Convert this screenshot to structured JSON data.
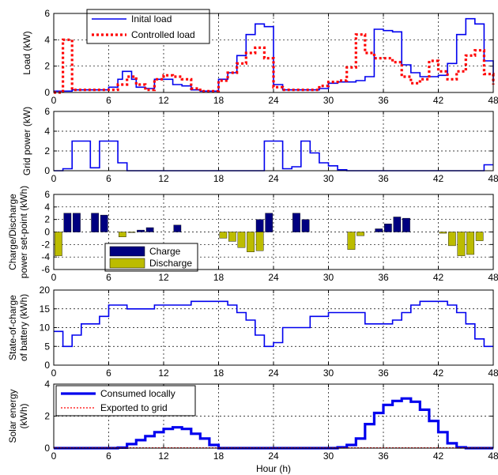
{
  "colors": {
    "blue": "#0000ee",
    "red": "#ff0000",
    "navy": "#000080",
    "olive": "#bcbc00"
  },
  "chart_data": [
    {
      "type": "line",
      "ylabel": "Load (kW)",
      "xlim": [
        0,
        48
      ],
      "ylim": [
        0,
        6
      ],
      "xticks": [
        "0",
        "6",
        "12",
        "18",
        "24",
        "30",
        "36",
        "42",
        "48"
      ],
      "yticks": [
        "0",
        "2",
        "4",
        "6"
      ],
      "grid": true,
      "legend_position": "top-left",
      "series": [
        {
          "name": "Inital load",
          "style": "solid",
          "x": [
            0,
            1,
            2,
            3,
            4,
            5,
            6,
            7,
            7.5,
            8.5,
            9,
            10,
            11,
            12,
            13,
            14,
            15,
            16,
            17,
            18,
            19,
            20,
            21,
            22,
            23,
            24,
            25,
            26,
            27,
            28,
            29,
            30,
            31,
            32,
            33,
            34,
            35,
            36,
            37,
            38,
            39,
            40,
            41,
            42,
            43,
            44,
            45,
            46,
            47,
            48
          ],
          "y": [
            0.1,
            0.1,
            0.2,
            0.2,
            0.2,
            0.2,
            0.4,
            1.0,
            1.6,
            1.0,
            0.4,
            0.3,
            1.0,
            1.0,
            0.6,
            0.5,
            0.2,
            0.1,
            0.1,
            1.0,
            1.5,
            2.8,
            4.4,
            5.2,
            5.0,
            0.6,
            0.2,
            0.2,
            0.2,
            0.2,
            0.3,
            0.7,
            0.8,
            0.8,
            0.9,
            1.2,
            4.8,
            4.7,
            4.6,
            2.1,
            1.5,
            1.2,
            1.2,
            1.3,
            2.2,
            4.4,
            5.6,
            5.2,
            2.4,
            0.8
          ]
        },
        {
          "name": "Controlled load",
          "style": "dotted",
          "x": [
            0,
            1,
            2,
            3,
            4,
            5,
            6,
            7,
            8,
            9,
            10,
            11,
            12,
            13,
            14,
            15,
            16,
            17,
            18,
            19,
            20,
            21,
            22,
            23,
            24,
            25,
            26,
            27,
            28,
            29,
            30,
            31,
            32,
            33,
            34,
            35,
            36,
            37,
            38,
            39,
            40,
            41,
            42,
            43,
            44,
            45,
            46,
            47,
            48
          ],
          "y": [
            0,
            4.0,
            0.2,
            0.2,
            0.2,
            0.2,
            0.2,
            0.6,
            1.2,
            0.6,
            0.2,
            1.0,
            1.3,
            1.2,
            1.0,
            0.3,
            0.1,
            0.1,
            0.9,
            1.5,
            2.2,
            3.0,
            3.4,
            2.6,
            0.4,
            0.2,
            0.2,
            0.2,
            0.2,
            0.5,
            0.8,
            0.9,
            1.9,
            4.4,
            3.0,
            2.6,
            2.6,
            2.3,
            1.2,
            0.7,
            1.0,
            2.4,
            1.6,
            1.0,
            1.6,
            2.8,
            3.2,
            1.4,
            0.6
          ]
        }
      ]
    },
    {
      "type": "line",
      "ylabel": "Grid power (kW)",
      "xlim": [
        0,
        48
      ],
      "ylim": [
        0,
        6
      ],
      "xticks": [
        "0",
        "6",
        "12",
        "18",
        "24",
        "30",
        "36",
        "42",
        "48"
      ],
      "yticks": [
        "0",
        "2",
        "4",
        "6"
      ],
      "grid": true,
      "x": [
        0,
        1,
        2,
        3,
        4,
        5,
        6,
        7,
        8,
        9,
        10,
        11,
        12,
        13,
        14,
        15,
        16,
        17,
        18,
        19,
        20,
        21,
        22,
        23,
        24,
        25,
        26,
        27,
        28,
        29,
        30,
        31,
        32,
        33,
        34,
        35,
        36,
        37,
        38,
        39,
        40,
        41,
        42,
        43,
        44,
        45,
        46,
        47,
        48
      ],
      "y": [
        0,
        0.2,
        3.0,
        3.0,
        0.3,
        3.0,
        3.0,
        0.8,
        0,
        0,
        0,
        0,
        0,
        0,
        0,
        0,
        0,
        0,
        0,
        0,
        0,
        0,
        0,
        3.0,
        3.0,
        0.2,
        0.4,
        3.0,
        1.8,
        0.8,
        0.5,
        0.1,
        0,
        0,
        0,
        0,
        0,
        0,
        0,
        0,
        0,
        0,
        0,
        0,
        0,
        0,
        0,
        0.6,
        0.6
      ]
    },
    {
      "type": "bar",
      "ylabel": "Charge/Discharge power set-point (kWh)",
      "ylabel_lines": [
        "Charge/Discharge",
        "power set-point (kWh)"
      ],
      "xlim": [
        0,
        48
      ],
      "ylim": [
        -6,
        6
      ],
      "xticks": [
        "0",
        "6",
        "12",
        "18",
        "24",
        "30",
        "36",
        "42",
        "48"
      ],
      "yticks": [
        "-6",
        "-4",
        "-2",
        "0",
        "2",
        "4",
        "6"
      ],
      "grid": true,
      "legend_position": "bottom-center",
      "series": [
        {
          "name": "Charge",
          "x": [
            1.5,
            2.5,
            4.5,
            5.5,
            9.5,
            10.5,
            13.5,
            22.5,
            23.5,
            26.5,
            27.5,
            35.5,
            36.5,
            37.5,
            38.5
          ],
          "values": [
            3,
            3,
            3,
            2.7,
            0.3,
            0.7,
            1.1,
            2.0,
            3.0,
            3.0,
            2.0,
            0.5,
            1.3,
            2.4,
            2.2
          ]
        },
        {
          "name": "Discharge",
          "x": [
            0.5,
            7.5,
            8.5,
            18.5,
            19.5,
            20.5,
            21.5,
            22.5,
            32.5,
            33.5,
            42.5,
            43.5,
            44.5,
            45.5,
            46.5
          ],
          "values": [
            -3.8,
            -0.8,
            -0.1,
            -1.0,
            -1.5,
            -2.5,
            -3.2,
            -3.0,
            -2.8,
            -0.6,
            -0.2,
            -2.2,
            -3.8,
            -3.6,
            -1.4
          ]
        }
      ]
    },
    {
      "type": "line",
      "ylabel": "State-of-charge of battery (kWh)",
      "ylabel_lines": [
        "State-of-charge",
        "of battery (kWh)"
      ],
      "xlim": [
        0,
        48
      ],
      "ylim": [
        0,
        20
      ],
      "xticks": [
        "0",
        "6",
        "12",
        "18",
        "24",
        "30",
        "36",
        "42",
        "48"
      ],
      "yticks": [
        "0",
        "5",
        "10",
        "15",
        "20"
      ],
      "grid": true,
      "x": [
        0,
        1,
        2,
        3,
        4,
        5,
        6,
        7,
        8,
        9,
        10,
        11,
        12,
        13,
        14,
        15,
        16,
        17,
        18,
        19,
        20,
        21,
        22,
        23,
        24,
        25,
        26,
        27,
        28,
        29,
        30,
        31,
        32,
        33,
        34,
        35,
        36,
        37,
        38,
        39,
        40,
        41,
        42,
        43,
        44,
        45,
        46,
        47,
        48
      ],
      "y": [
        9,
        5,
        8,
        11,
        11,
        13,
        16,
        16,
        15,
        15,
        15,
        16,
        16,
        16,
        16,
        17,
        17,
        17,
        17,
        16,
        14,
        12,
        8,
        5,
        6,
        10,
        10,
        10,
        13,
        13,
        14,
        14,
        14,
        14,
        11,
        11,
        11,
        12,
        14,
        16,
        17,
        17,
        17,
        16,
        14,
        11,
        7,
        5,
        5
      ]
    },
    {
      "type": "line",
      "ylabel": "Solar energy (kWh)",
      "ylabel_lines": [
        "Solar energy",
        "(kWh)"
      ],
      "xlabel": "Hour (h)",
      "xlim": [
        0,
        48
      ],
      "ylim": [
        0,
        4
      ],
      "xticks": [
        "0",
        "6",
        "12",
        "18",
        "24",
        "30",
        "36",
        "42",
        "48"
      ],
      "yticks": [
        "0",
        "2",
        "4"
      ],
      "grid": true,
      "legend_position": "top-left",
      "series": [
        {
          "name": "Consumed locally",
          "style": "thick",
          "x": [
            0,
            1,
            2,
            3,
            4,
            5,
            6,
            7,
            8,
            9,
            10,
            11,
            12,
            13,
            14,
            15,
            16,
            17,
            18,
            19,
            20,
            21,
            22,
            23,
            24,
            25,
            26,
            27,
            28,
            29,
            30,
            31,
            32,
            33,
            34,
            35,
            36,
            37,
            38,
            39,
            40,
            41,
            42,
            43,
            44,
            45,
            46,
            47,
            48
          ],
          "y": [
            0,
            0,
            0,
            0,
            0,
            0,
            0,
            0.03,
            0.25,
            0.5,
            0.75,
            1.0,
            1.2,
            1.3,
            1.2,
            0.9,
            0.6,
            0.2,
            0,
            0,
            0,
            0,
            0,
            0,
            0,
            0,
            0,
            0,
            0,
            0,
            0,
            0.05,
            0.2,
            0.6,
            1.5,
            2.2,
            2.7,
            2.95,
            3.1,
            2.9,
            2.4,
            1.7,
            1.0,
            0.3,
            0.05,
            0,
            0,
            0,
            0
          ]
        },
        {
          "name": "Exported to grid",
          "style": "dotted",
          "x": [
            0,
            48
          ],
          "y": [
            0.02,
            0.02
          ]
        }
      ]
    }
  ]
}
